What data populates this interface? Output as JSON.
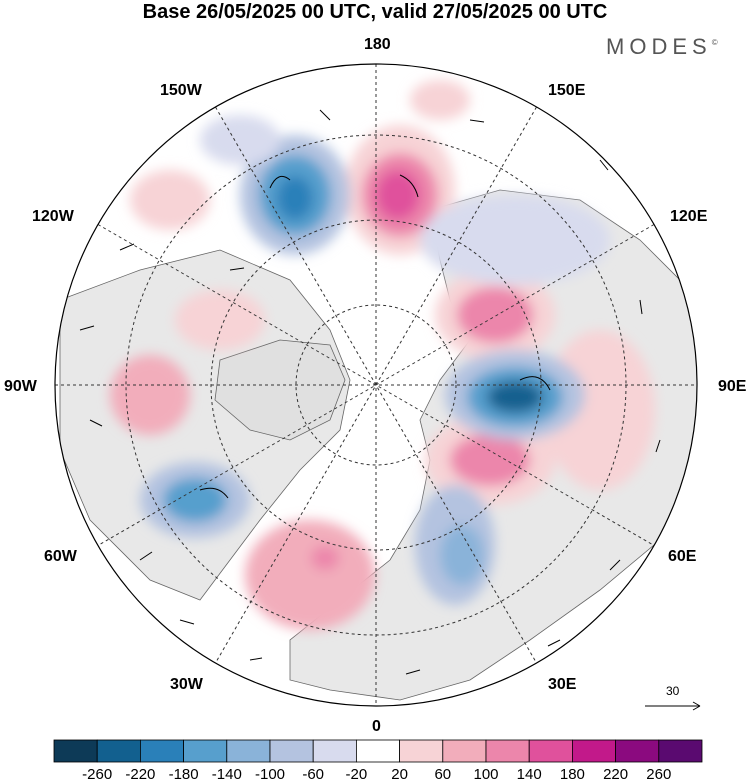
{
  "header": {
    "title": "Base 26/05/2025 00 UTC, valid 27/05/2025 00 UTC",
    "brand": "MODES",
    "brand_mark": "©"
  },
  "map": {
    "projection": "north-polar-stereographic",
    "longitude_labels": {
      "top": "180",
      "bottom": "0",
      "left": "90W",
      "right": "90E",
      "upper_left_1": "150W",
      "upper_left_2": "120W",
      "lower_left_1": "60W",
      "lower_left_2": "30W",
      "upper_right_1": "150E",
      "upper_right_2": "120E",
      "lower_right_1": "60E",
      "lower_right_2": "30E"
    },
    "reference_vector_label": "30",
    "colors": {
      "land_fill": "#e6e6e6",
      "coast": "#555555",
      "graticule": "#333333"
    }
  },
  "colorbar": {
    "labels": [
      "-260",
      "-220",
      "-180",
      "-140",
      "-100",
      "-60",
      "-20",
      "20",
      "60",
      "100",
      "140",
      "180",
      "220",
      "260"
    ],
    "colors": [
      "#0d3a57",
      "#12608f",
      "#2a80b9",
      "#579fcd",
      "#8ab3d9",
      "#b4c3e0",
      "#d8dbee",
      "#ffffff",
      "#f7d3d6",
      "#f2adbb",
      "#ec86ab",
      "#e0519c",
      "#c2198a",
      "#8b0a7f",
      "#5a0a70"
    ]
  }
}
